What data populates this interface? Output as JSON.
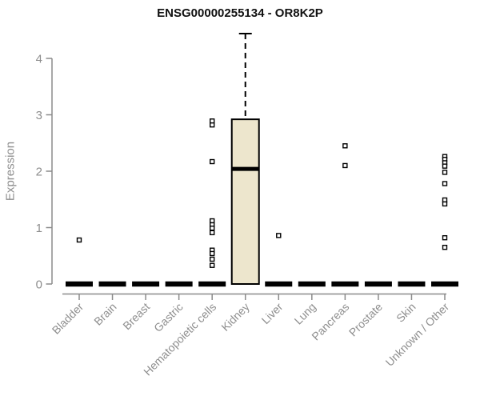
{
  "chart_data": {
    "type": "box",
    "title": "ENSG00000255134 - OR8K2P",
    "xlabel": "",
    "ylabel": "Expression",
    "ylim": [
      0,
      4.5
    ],
    "yticks": [
      0,
      1,
      2,
      3,
      4
    ],
    "grid": false,
    "legend": null,
    "categories": [
      "Bladder",
      "Brain",
      "Breast",
      "Gastric",
      "Hematopoietic cells",
      "Kidney",
      "Liver",
      "Lung",
      "Pancreas",
      "Prostate",
      "Skin",
      "Unknown / Other"
    ],
    "series": [
      {
        "category": "Bladder",
        "whisker_low": 0,
        "q1": 0,
        "median": 0,
        "q3": 0,
        "whisker_high": 0,
        "outliers": [
          0.78
        ]
      },
      {
        "category": "Brain",
        "whisker_low": 0,
        "q1": 0,
        "median": 0,
        "q3": 0,
        "whisker_high": 0,
        "outliers": []
      },
      {
        "category": "Breast",
        "whisker_low": 0,
        "q1": 0,
        "median": 0,
        "q3": 0,
        "whisker_high": 0,
        "outliers": []
      },
      {
        "category": "Gastric",
        "whisker_low": 0,
        "q1": 0,
        "median": 0,
        "q3": 0,
        "whisker_high": 0,
        "outliers": []
      },
      {
        "category": "Hematopoietic cells",
        "whisker_low": 0,
        "q1": 0,
        "median": 0,
        "q3": 0,
        "whisker_high": 0,
        "outliers": [
          2.89,
          2.82,
          2.17,
          1.12,
          1.05,
          0.99,
          0.91,
          0.6,
          0.54,
          0.44,
          0.33
        ]
      },
      {
        "category": "Kidney",
        "whisker_low": 0,
        "q1": 0,
        "median": 2.04,
        "q3": 2.92,
        "whisker_high": 4.44,
        "outliers": []
      },
      {
        "category": "Liver",
        "whisker_low": 0,
        "q1": 0,
        "median": 0,
        "q3": 0,
        "whisker_high": 0,
        "outliers": [
          0.86
        ]
      },
      {
        "category": "Lung",
        "whisker_low": 0,
        "q1": 0,
        "median": 0,
        "q3": 0,
        "whisker_high": 0,
        "outliers": []
      },
      {
        "category": "Pancreas",
        "whisker_low": 0,
        "q1": 0,
        "median": 0,
        "q3": 0,
        "whisker_high": 0,
        "outliers": [
          2.45,
          2.1
        ]
      },
      {
        "category": "Prostate",
        "whisker_low": 0,
        "q1": 0,
        "median": 0,
        "q3": 0,
        "whisker_high": 0,
        "outliers": []
      },
      {
        "category": "Skin",
        "whisker_low": 0,
        "q1": 0,
        "median": 0,
        "q3": 0,
        "whisker_high": 0,
        "outliers": []
      },
      {
        "category": "Unknown / Other",
        "whisker_low": 0,
        "q1": 0,
        "median": 0,
        "q3": 0,
        "whisker_high": 0,
        "outliers": [
          2.26,
          2.21,
          2.15,
          2.09,
          1.98,
          1.78,
          1.49,
          1.42,
          0.82,
          0.65
        ]
      }
    ],
    "style": {
      "box_fill": "#EDE6CD",
      "box_stroke": "#000000",
      "axis_color": "#8B8B8B",
      "tick_label_color": "#8E8E8E",
      "title_color": "#111111",
      "background": "#FFFFFF"
    }
  }
}
